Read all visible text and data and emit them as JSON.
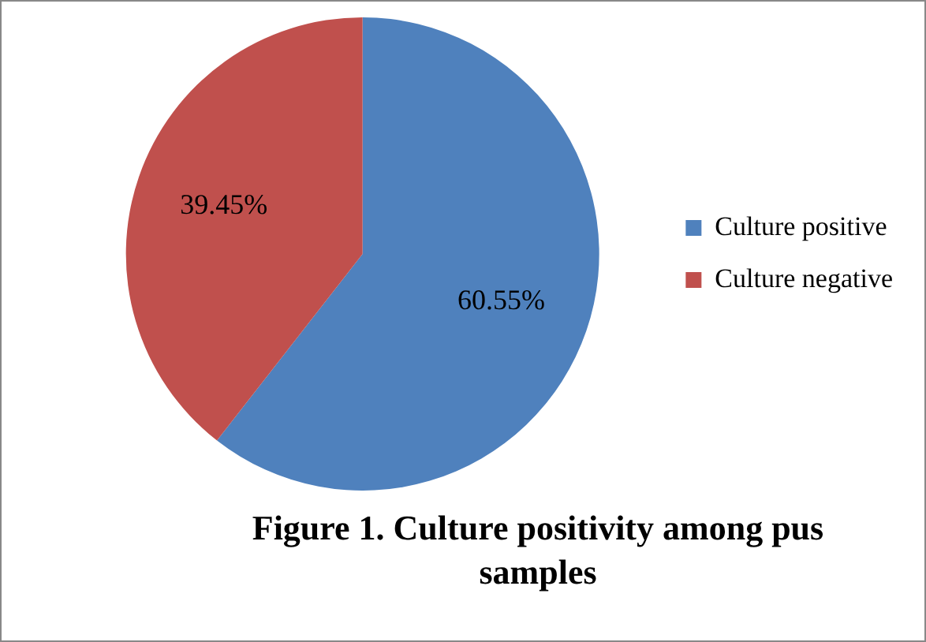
{
  "chart_data": {
    "type": "pie",
    "title": "Figure 1. Culture positivity among pus samples",
    "categories": [
      "Culture positive",
      "Culture negative"
    ],
    "values": [
      60.55,
      39.45
    ],
    "colors": [
      "#4f81bd",
      "#c0504d"
    ],
    "value_labels": [
      "60.55%",
      "39.45%"
    ],
    "legend": "right"
  }
}
